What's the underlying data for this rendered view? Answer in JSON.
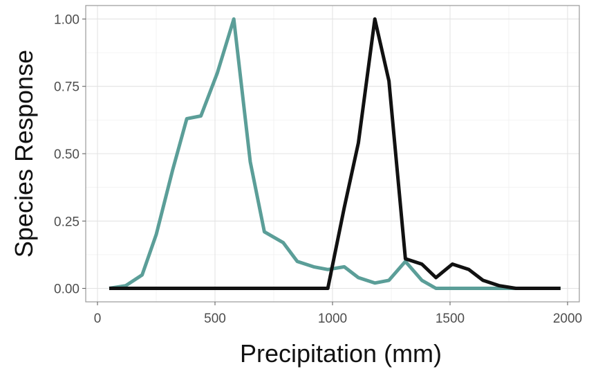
{
  "chart_data": {
    "type": "line",
    "xlabel": "Precipitation (mm)",
    "ylabel": "Species Response",
    "xlim": [
      -50,
      2050
    ],
    "ylim": [
      -0.05,
      1.05
    ],
    "xticks": [
      0,
      500,
      1000,
      1500,
      2000
    ],
    "xtick_labels": [
      "0",
      "500",
      "1000",
      "1500",
      "2000"
    ],
    "yticks": [
      0,
      0.25,
      0.5,
      0.75,
      1.0
    ],
    "ytick_labels": [
      "0.00",
      "0.25",
      "0.50",
      "0.75",
      "1.00"
    ],
    "grid": true,
    "legend": "none",
    "series": [
      {
        "color": "#5b9e98",
        "points": [
          [
            50,
            0.0
          ],
          [
            120,
            0.01
          ],
          [
            190,
            0.05
          ],
          [
            250,
            0.2
          ],
          [
            320,
            0.44
          ],
          [
            380,
            0.63
          ],
          [
            440,
            0.64
          ],
          [
            510,
            0.8
          ],
          [
            580,
            1.0
          ],
          [
            650,
            0.47
          ],
          [
            710,
            0.21
          ],
          [
            790,
            0.17
          ],
          [
            850,
            0.1
          ],
          [
            920,
            0.08
          ],
          [
            980,
            0.07
          ],
          [
            1050,
            0.08
          ],
          [
            1110,
            0.04
          ],
          [
            1180,
            0.02
          ],
          [
            1240,
            0.03
          ],
          [
            1310,
            0.1
          ],
          [
            1380,
            0.03
          ],
          [
            1440,
            0.0
          ],
          [
            1510,
            0.0
          ],
          [
            1580,
            0.0
          ],
          [
            1640,
            0.0
          ],
          [
            1710,
            0.0
          ],
          [
            1780,
            0.0
          ],
          [
            1840,
            0.0
          ],
          [
            1910,
            0.0
          ],
          [
            1970,
            0.0
          ]
        ]
      },
      {
        "color": "#111111",
        "points": [
          [
            50,
            0.0
          ],
          [
            120,
            0.0
          ],
          [
            190,
            0.0
          ],
          [
            250,
            0.0
          ],
          [
            320,
            0.0
          ],
          [
            380,
            0.0
          ],
          [
            440,
            0.0
          ],
          [
            510,
            0.0
          ],
          [
            580,
            0.0
          ],
          [
            650,
            0.0
          ],
          [
            710,
            0.0
          ],
          [
            790,
            0.0
          ],
          [
            850,
            0.0
          ],
          [
            920,
            0.0
          ],
          [
            980,
            0.0
          ],
          [
            1050,
            0.3
          ],
          [
            1110,
            0.54
          ],
          [
            1180,
            1.0
          ],
          [
            1240,
            0.77
          ],
          [
            1310,
            0.11
          ],
          [
            1380,
            0.09
          ],
          [
            1440,
            0.04
          ],
          [
            1510,
            0.09
          ],
          [
            1580,
            0.07
          ],
          [
            1640,
            0.03
          ],
          [
            1710,
            0.01
          ],
          [
            1780,
            0.0
          ],
          [
            1840,
            0.0
          ],
          [
            1910,
            0.0
          ],
          [
            1970,
            0.0
          ]
        ]
      }
    ]
  }
}
